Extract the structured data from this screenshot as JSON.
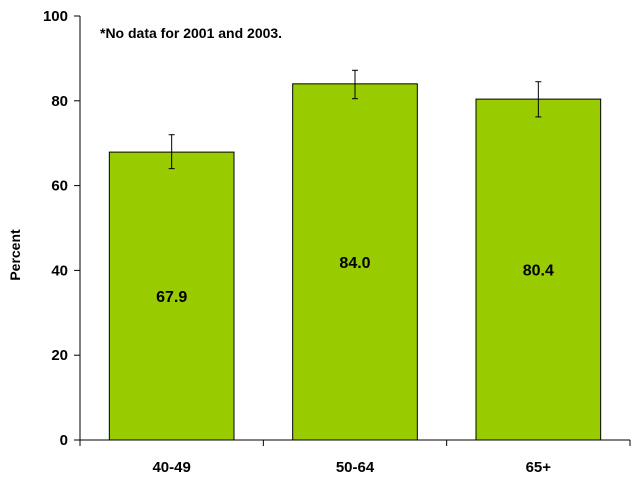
{
  "chart_data": {
    "type": "bar",
    "categories": [
      "40-49",
      "50-64",
      "65+"
    ],
    "values": [
      67.9,
      84.0,
      80.4
    ],
    "data_labels": [
      "67.9",
      "84.0",
      "80.4"
    ],
    "error_bars": [
      {
        "low": 64.0,
        "high": 72.0
      },
      {
        "low": 80.5,
        "high": 87.2
      },
      {
        "low": 76.2,
        "high": 84.5
      }
    ],
    "title": "",
    "xlabel": "",
    "ylabel": "Percent",
    "ylim": [
      0,
      100
    ],
    "yticks": [
      0,
      20,
      40,
      60,
      80,
      100
    ],
    "ytick_labels": [
      "0",
      "20",
      "40",
      "60",
      "80",
      "100"
    ],
    "annotation": "*No data for 2001 and 2003.",
    "grid": false,
    "colors": {
      "bar": "#99cc00",
      "bar_edge": "#000000",
      "axis": "#000000"
    }
  }
}
